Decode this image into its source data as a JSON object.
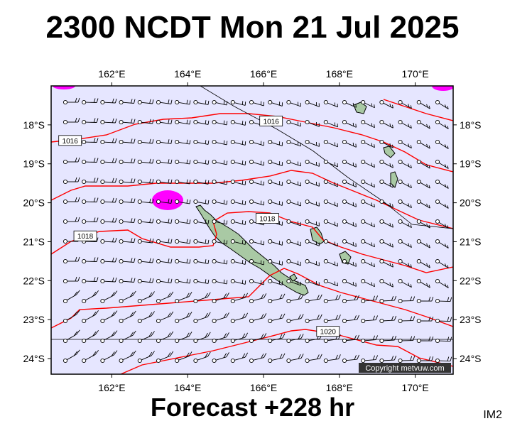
{
  "title": "2300 NCDT Mon 21 Jul 2025",
  "footer": "Forecast +228 hr",
  "tag": "IM2",
  "copyright": "Copyright metvuw.com",
  "map": {
    "lon_labels": [
      "162°E",
      "164°E",
      "166°E",
      "168°E",
      "170°E"
    ],
    "lon_values": [
      162,
      164,
      166,
      168,
      170
    ],
    "lat_labels": [
      "18°S",
      "19°S",
      "20°S",
      "21°S",
      "22°S",
      "23°S",
      "24°S"
    ],
    "lat_values": [
      -18,
      -19,
      -20,
      -21,
      -22,
      -23,
      -24
    ],
    "lon_range": [
      160.4,
      171.0
    ],
    "lat_range": [
      -17.0,
      -24.4
    ],
    "ocean_color": "#e6e6ff",
    "land_color": "#a9c9a4",
    "isobar_color": "#ff0000",
    "precip_color": "#ff00ff",
    "isobar_labels": [
      {
        "text": "1016",
        "lon": 160.9,
        "lat": -18.4
      },
      {
        "text": "1016",
        "lon": 166.2,
        "lat": -17.9
      },
      {
        "text": "1018",
        "lon": 166.1,
        "lat": -20.4
      },
      {
        "text": "1018",
        "lon": 161.3,
        "lat": -20.85
      },
      {
        "text": "1020",
        "lon": 167.7,
        "lat": -23.3
      }
    ]
  }
}
